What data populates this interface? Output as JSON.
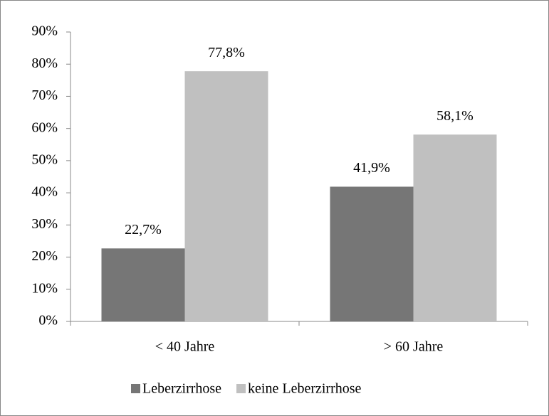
{
  "chart_data": {
    "type": "bar",
    "categories": [
      "< 40 Jahre",
      "> 60 Jahre"
    ],
    "series": [
      {
        "name": "Leberzirrhose",
        "color": "#767676",
        "values": [
          22.7,
          41.9
        ],
        "value_labels": [
          "22,7%",
          "41,9%"
        ]
      },
      {
        "name": "keine Leberzirrhose",
        "color": "#c0c0c0",
        "values": [
          77.8,
          58.1
        ],
        "value_labels": [
          "77,8%",
          "58,1%"
        ]
      }
    ],
    "ylim": [
      0,
      90
    ],
    "yticks": [
      {
        "value": 0,
        "label": "0%"
      },
      {
        "value": 10,
        "label": "10%"
      },
      {
        "value": 20,
        "label": "20%"
      },
      {
        "value": 30,
        "label": "30%"
      },
      {
        "value": 40,
        "label": "40%"
      },
      {
        "value": 50,
        "label": "50%"
      },
      {
        "value": 60,
        "label": "60%"
      },
      {
        "value": 70,
        "label": "70%"
      },
      {
        "value": 80,
        "label": "80%"
      },
      {
        "value": 90,
        "label": "90%"
      }
    ],
    "grid": false,
    "legend": "bottom"
  }
}
